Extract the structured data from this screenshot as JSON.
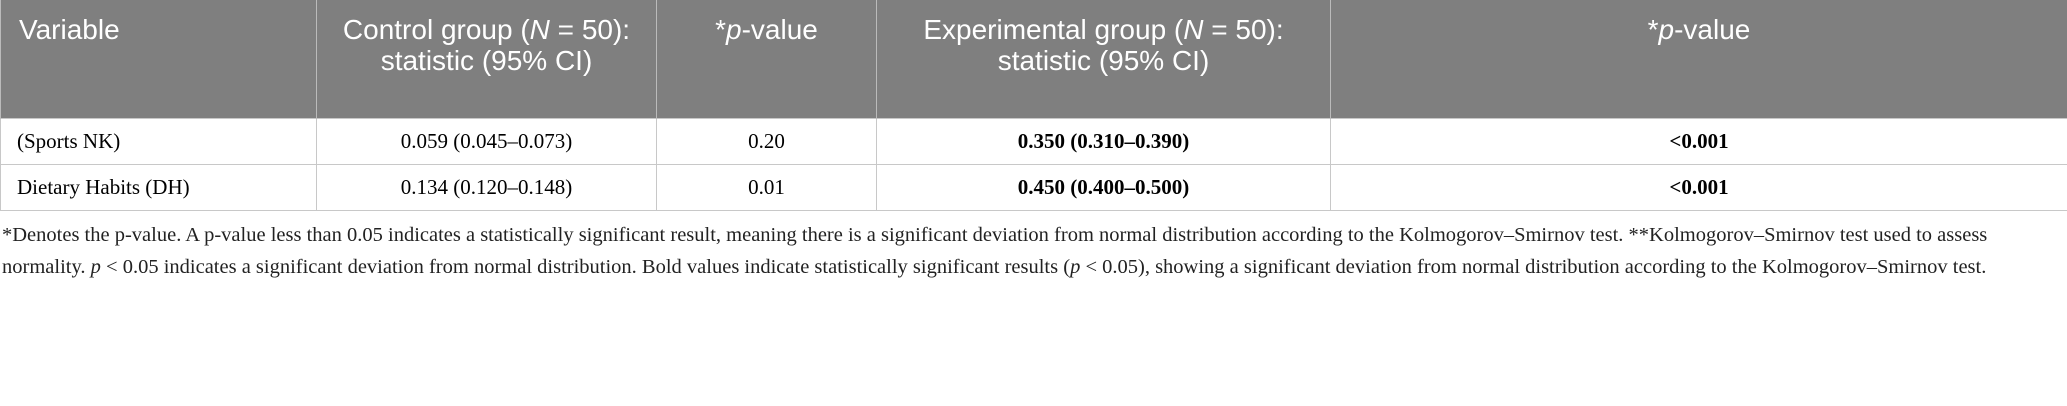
{
  "table": {
    "header": [
      [
        "Variable"
      ],
      [
        "Control group (",
        "N",
        " = 50): statistic (95% CI)"
      ],
      [
        "*",
        "p",
        "-value"
      ],
      [
        "Experimental group (",
        "N",
        " = 50): statistic (95% CI)"
      ],
      [
        "*",
        "p",
        "-value"
      ]
    ],
    "rows": [
      [
        "(Sports NK)",
        "0.059 (0.045–0.073)",
        "0.20",
        "0.350 (0.310–0.390)",
        "<0.001"
      ],
      [
        "Dietary Habits (DH)",
        "0.134 (0.120–0.148)",
        "0.01",
        "0.450 (0.400–0.500)",
        "<0.001"
      ]
    ]
  },
  "footnote": [
    "*Denotes the p-value. A p-value less than 0.05 indicates a statistically significant result, meaning there is a significant deviation from normal distribution according to the Kolmogorov–Smirnov test. **Kolmogorov–Smirnov test used to assess normality. ",
    "p",
    " < 0.05 indicates a significant deviation from normal distribution. Bold values indicate statistically significant results (",
    "p",
    " < 0.05), showing a significant deviation from normal distribution according to the Kolmogorov–Smirnov test."
  ]
}
